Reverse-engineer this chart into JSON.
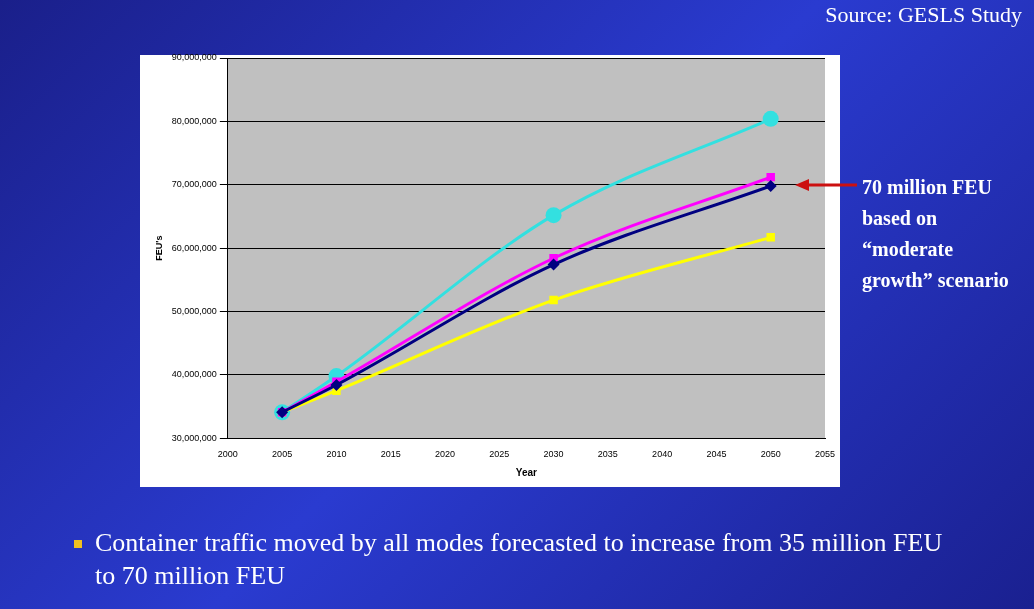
{
  "chart_data": {
    "type": "line",
    "xlabel": "Year",
    "ylabel": "FEU's",
    "xlim": [
      2000,
      2055
    ],
    "xticks": [
      2000,
      2005,
      2010,
      2015,
      2020,
      2025,
      2030,
      2035,
      2040,
      2045,
      2050,
      2055
    ],
    "ylim": [
      30000000,
      90000000
    ],
    "yticks": [
      {
        "value": 30000000,
        "label": "30,000,000"
      },
      {
        "value": 40000000,
        "label": "40,000,000"
      },
      {
        "value": 50000000,
        "label": "50,000,000"
      },
      {
        "value": 60000000,
        "label": "60,000,000"
      },
      {
        "value": 70000000,
        "label": "70,000,000"
      },
      {
        "value": 80000000,
        "label": "80,000,000"
      },
      {
        "value": 90000000,
        "label": "90,000,000"
      }
    ],
    "grid": "y",
    "legend": false,
    "line_style": "solid",
    "x": [
      2005,
      2010,
      2030,
      2050
    ],
    "series": [
      {
        "color": "#000080",
        "marker": "diamond",
        "values": [
          34100000,
          38400000,
          57400000,
          69800000
        ]
      },
      {
        "color": "#ff00ff",
        "marker": "square",
        "values": [
          34100000,
          38900000,
          58400000,
          71200000
        ]
      },
      {
        "color": "#ffff00",
        "marker": "square",
        "values": [
          34100000,
          37500000,
          51800000,
          61700000
        ]
      },
      {
        "color": "#33e0e0",
        "marker": "circle",
        "values": [
          34100000,
          39800000,
          65200000,
          80400000
        ]
      }
    ],
    "annotations": [
      "Source: GESLS Study",
      "70 million FEU based on “moderate growth” scenario",
      "Container traffic moved by all modes forecasted to increase from 35 million FEU to 70 million FEU"
    ]
  }
}
